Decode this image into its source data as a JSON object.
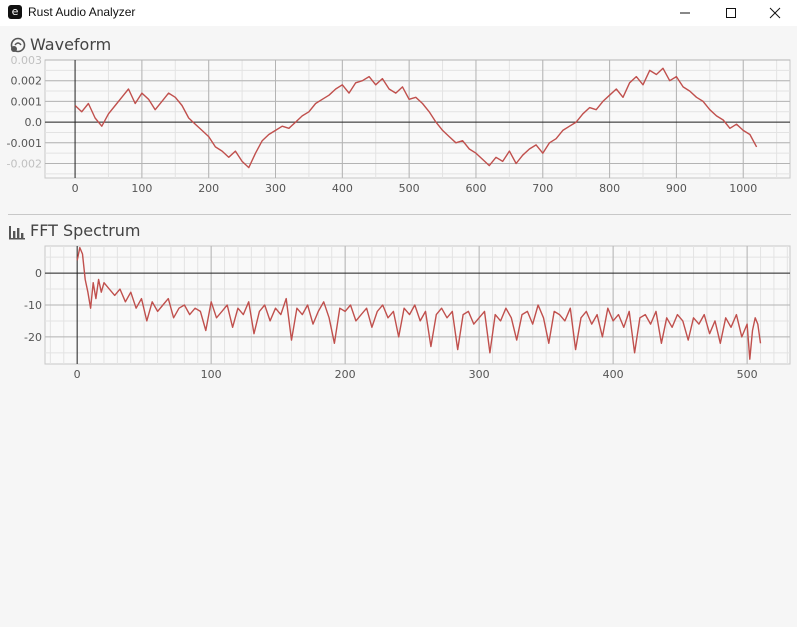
{
  "window": {
    "title": "Rust Audio Analyzer",
    "app_icon_glyph": "e",
    "controls": [
      "minimize-icon",
      "maximize-icon",
      "close-icon"
    ]
  },
  "waveform": {
    "title": "Waveform",
    "icon": "waveform-icon"
  },
  "fft": {
    "title": "FFT Spectrum",
    "icon": "bar-chart-icon"
  },
  "colors": {
    "line": "#c0504d",
    "grid_minor": "#e3e3e3",
    "grid_major": "#b4b4b4",
    "axis": "#222222",
    "background": "#f6f6f6",
    "tick_text": "#555555",
    "tick_text_faint": "#c0c0c0"
  },
  "chart_data": [
    {
      "type": "line",
      "name": "waveform",
      "xlim": [
        -45,
        1070
      ],
      "ylim": [
        -0.0027,
        0.003
      ],
      "x_ticks": [
        0,
        100,
        200,
        300,
        400,
        500,
        600,
        700,
        800,
        900,
        1000
      ],
      "x_tick_labels": [
        "0",
        "100",
        "200",
        "300",
        "400",
        "500",
        "600",
        "700",
        "800",
        "900",
        "1000"
      ],
      "y_ticks": [
        0.003,
        0.002,
        0.001,
        0.0,
        -0.001,
        -0.002
      ],
      "y_tick_labels": [
        "0.003",
        "0.002",
        "0.001",
        "0.0",
        "-0.001",
        "-0.002"
      ],
      "grid": true,
      "x": [
        0,
        10,
        20,
        30,
        40,
        50,
        60,
        70,
        80,
        90,
        100,
        110,
        120,
        130,
        140,
        150,
        160,
        170,
        180,
        190,
        200,
        210,
        220,
        230,
        240,
        250,
        260,
        270,
        280,
        290,
        300,
        310,
        320,
        330,
        340,
        350,
        360,
        370,
        380,
        390,
        400,
        410,
        420,
        430,
        440,
        450,
        460,
        470,
        480,
        490,
        500,
        510,
        520,
        530,
        540,
        550,
        560,
        570,
        580,
        590,
        600,
        610,
        620,
        630,
        640,
        650,
        660,
        670,
        680,
        690,
        700,
        710,
        720,
        730,
        740,
        750,
        760,
        770,
        780,
        790,
        800,
        810,
        820,
        830,
        840,
        850,
        860,
        870,
        880,
        890,
        900,
        910,
        920,
        930,
        940,
        950,
        960,
        970,
        980,
        990,
        1000,
        1010,
        1020
      ],
      "y": [
        0.0008,
        0.0005,
        0.0009,
        0.0002,
        -0.0002,
        0.0004,
        0.0008,
        0.0012,
        0.0016,
        0.0009,
        0.0014,
        0.0011,
        0.0006,
        0.001,
        0.0014,
        0.0012,
        0.0008,
        0.0002,
        -0.0001,
        -0.0004,
        -0.0007,
        -0.0012,
        -0.0014,
        -0.0017,
        -0.0014,
        -0.0019,
        -0.0022,
        -0.0015,
        -0.0009,
        -0.0006,
        -0.0004,
        -0.0002,
        -0.0003,
        0.0,
        0.0003,
        0.0005,
        0.0009,
        0.0011,
        0.0013,
        0.0016,
        0.0018,
        0.0014,
        0.0019,
        0.002,
        0.0022,
        0.0018,
        0.0021,
        0.0016,
        0.0014,
        0.0017,
        0.0011,
        0.0012,
        0.0009,
        0.0005,
        0.0,
        -0.0004,
        -0.0007,
        -0.001,
        -0.0009,
        -0.0013,
        -0.0015,
        -0.0018,
        -0.0021,
        -0.0017,
        -0.0019,
        -0.0014,
        -0.002,
        -0.0016,
        -0.0013,
        -0.0011,
        -0.0015,
        -0.001,
        -0.0008,
        -0.0004,
        -0.0002,
        0.0,
        0.0004,
        0.0007,
        0.0006,
        0.001,
        0.0013,
        0.0016,
        0.0012,
        0.0019,
        0.0022,
        0.0018,
        0.0025,
        0.0023,
        0.0026,
        0.002,
        0.0022,
        0.0017,
        0.0015,
        0.0012,
        0.001,
        0.0006,
        0.0003,
        0.0001,
        -0.0003,
        -0.0001,
        -0.0004,
        -0.0006,
        -0.0012
      ]
    },
    {
      "type": "line",
      "name": "fft",
      "xlim": [
        -24,
        532
      ],
      "ylim": [
        -28.5,
        8.5
      ],
      "x_ticks": [
        0,
        100,
        200,
        300,
        400,
        500
      ],
      "x_tick_labels": [
        "0",
        "100",
        "200",
        "300",
        "400",
        "500"
      ],
      "y_ticks": [
        0,
        -10,
        -20
      ],
      "y_tick_labels": [
        "0",
        "-10",
        "-20"
      ],
      "grid": true,
      "x": [
        0,
        2,
        4,
        6,
        8,
        10,
        12,
        14,
        16,
        18,
        20,
        24,
        28,
        32,
        36,
        40,
        44,
        48,
        52,
        56,
        60,
        64,
        68,
        72,
        76,
        80,
        84,
        88,
        92,
        96,
        100,
        104,
        108,
        112,
        116,
        120,
        124,
        128,
        132,
        136,
        140,
        144,
        148,
        152,
        156,
        160,
        164,
        168,
        172,
        176,
        180,
        184,
        188,
        192,
        196,
        200,
        204,
        208,
        212,
        216,
        220,
        224,
        228,
        232,
        236,
        240,
        244,
        248,
        252,
        256,
        260,
        264,
        268,
        272,
        276,
        280,
        284,
        288,
        292,
        296,
        300,
        304,
        308,
        312,
        316,
        320,
        324,
        328,
        332,
        336,
        340,
        344,
        348,
        352,
        356,
        360,
        364,
        368,
        372,
        376,
        380,
        384,
        388,
        392,
        396,
        400,
        404,
        408,
        412,
        416,
        420,
        424,
        428,
        432,
        436,
        440,
        444,
        448,
        452,
        456,
        460,
        464,
        468,
        472,
        476,
        480,
        484,
        488,
        492,
        496,
        500,
        502,
        504,
        506,
        508,
        510
      ],
      "y": [
        4,
        8,
        6,
        -2,
        -6,
        -11,
        -3,
        -8,
        -2,
        -6,
        -3,
        -5,
        -7,
        -5,
        -9,
        -6,
        -11,
        -8,
        -15,
        -9,
        -12,
        -10,
        -8,
        -14,
        -11,
        -10,
        -13,
        -11,
        -12,
        -18,
        -9,
        -14,
        -12,
        -10,
        -17,
        -11,
        -13,
        -9,
        -19,
        -12,
        -10,
        -15,
        -11,
        -13,
        -8,
        -21,
        -11,
        -13,
        -10,
        -16,
        -12,
        -9,
        -14,
        -22,
        -11,
        -12,
        -10,
        -15,
        -13,
        -11,
        -17,
        -12,
        -10,
        -14,
        -12,
        -20,
        -11,
        -13,
        -10,
        -15,
        -12,
        -23,
        -13,
        -11,
        -14,
        -12,
        -24,
        -13,
        -12,
        -16,
        -14,
        -12,
        -25,
        -13,
        -15,
        -11,
        -14,
        -21,
        -13,
        -12,
        -16,
        -10,
        -14,
        -22,
        -12,
        -13,
        -15,
        -11,
        -24,
        -14,
        -12,
        -16,
        -13,
        -20,
        -11,
        -15,
        -13,
        -17,
        -12,
        -25,
        -14,
        -13,
        -16,
        -12,
        -22,
        -14,
        -17,
        -13,
        -15,
        -21,
        -14,
        -16,
        -13,
        -19,
        -15,
        -22,
        -14,
        -17,
        -13,
        -20,
        -16,
        -27,
        -18,
        -14,
        -16,
        -22
      ]
    }
  ]
}
